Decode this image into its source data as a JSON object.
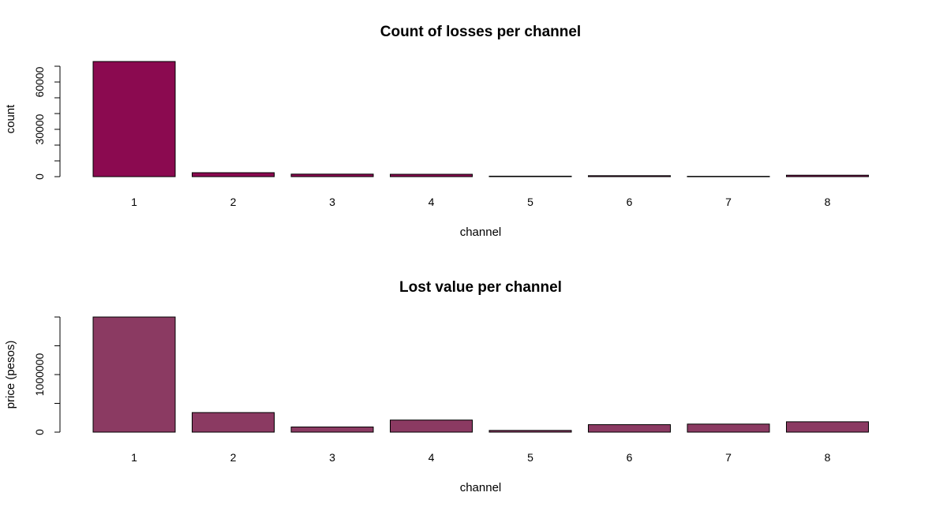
{
  "chart_data": [
    {
      "type": "bar",
      "title": "Count of losses per channel",
      "xlabel": "channel",
      "ylabel": "count",
      "categories": [
        "1",
        "2",
        "3",
        "4",
        "5",
        "6",
        "7",
        "8"
      ],
      "values": [
        73000,
        2500,
        1600,
        1500,
        300,
        600,
        200,
        900
      ],
      "ylim": [
        0,
        73000
      ],
      "y_tick_labels": [
        0,
        30000,
        60000
      ],
      "y_minor_ticks": [
        0,
        10000,
        20000,
        30000,
        40000,
        50000,
        60000,
        70000
      ],
      "bar_color": "#8B0A50",
      "grid": false
    },
    {
      "type": "bar",
      "title": "Lost value per channel",
      "xlabel": "channel",
      "ylabel": "price (pesos)",
      "categories": [
        "1",
        "2",
        "3",
        "4",
        "5",
        "6",
        "7",
        "8"
      ],
      "values": [
        2000000,
        340000,
        90000,
        210000,
        30000,
        130000,
        140000,
        180000
      ],
      "ylim": [
        0,
        2000000
      ],
      "y_tick_labels": [
        0,
        1000000
      ],
      "y_minor_ticks": [
        0,
        500000,
        1000000,
        1500000,
        2000000
      ],
      "bar_color": "#8B3A62",
      "grid": false
    }
  ]
}
